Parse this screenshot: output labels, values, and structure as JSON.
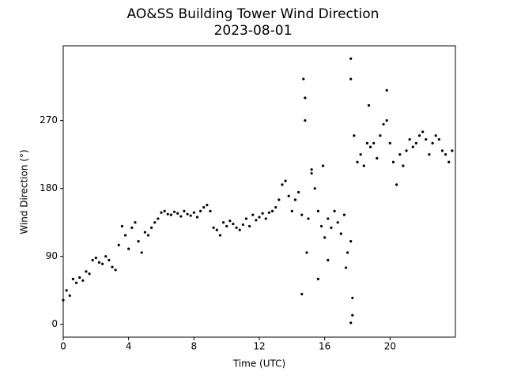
{
  "chart_data": {
    "type": "scatter",
    "title": "AO&SS Building Tower Wind Direction",
    "subtitle": "2023-08-01",
    "x_label": "Time (UTC)",
    "y_label": "Wind Direction (°)",
    "color": "#000000",
    "xlim": [
      0,
      24
    ],
    "xticks": [
      0,
      4,
      8,
      12,
      16,
      20
    ],
    "ylim": [
      -17,
      369
    ],
    "yticks": [
      0,
      90,
      180,
      270
    ],
    "x": [
      0.0,
      0.2,
      0.4,
      0.6,
      0.8,
      1.0,
      1.2,
      1.4,
      1.6,
      1.8,
      2.0,
      2.2,
      2.4,
      2.6,
      2.8,
      3.0,
      3.2,
      3.4,
      3.6,
      3.8,
      4.0,
      4.2,
      4.4,
      4.6,
      4.8,
      5.0,
      5.2,
      5.4,
      5.6,
      5.8,
      6.0,
      6.2,
      6.4,
      6.6,
      6.8,
      7.0,
      7.2,
      7.4,
      7.6,
      7.8,
      8.0,
      8.2,
      8.4,
      8.6,
      8.8,
      9.0,
      9.2,
      9.4,
      9.6,
      9.8,
      10.0,
      10.2,
      10.4,
      10.6,
      10.8,
      11.0,
      11.2,
      11.4,
      11.6,
      11.8,
      12.0,
      12.2,
      12.4,
      12.6,
      12.8,
      13.0,
      13.2,
      13.4,
      13.6,
      13.8,
      14.0,
      14.2,
      14.4,
      14.6,
      14.8,
      15.0,
      15.2,
      15.4,
      15.6,
      15.8,
      16.0,
      16.2,
      16.4,
      16.6,
      16.8,
      17.0,
      17.2,
      17.4,
      17.6,
      17.8,
      18.0,
      18.2,
      18.4,
      18.6,
      18.8,
      19.0,
      19.2,
      19.4,
      19.6,
      19.8,
      20.0,
      20.2,
      20.4,
      20.6,
      20.8,
      21.0,
      21.2,
      21.4,
      21.6,
      21.8,
      22.0,
      22.2,
      22.4,
      22.6,
      22.8,
      23.0,
      23.2,
      23.4,
      23.6,
      23.8,
      14.6,
      14.7,
      14.8,
      14.9,
      15.6,
      15.9,
      16.2,
      17.6,
      17.7,
      17.6,
      17.6,
      17.3,
      19.8,
      18.7,
      15.2,
      17.7
    ],
    "values": [
      32,
      45,
      38,
      60,
      55,
      62,
      58,
      70,
      67,
      85,
      88,
      82,
      80,
      90,
      85,
      76,
      72,
      105,
      130,
      118,
      100,
      128,
      135,
      110,
      95,
      122,
      118,
      128,
      135,
      140,
      148,
      150,
      146,
      145,
      149,
      147,
      143,
      150,
      146,
      144,
      148,
      142,
      150,
      155,
      158,
      150,
      128,
      125,
      118,
      135,
      130,
      137,
      133,
      128,
      125,
      132,
      140,
      130,
      145,
      138,
      142,
      147,
      140,
      148,
      150,
      155,
      165,
      185,
      190,
      170,
      150,
      165,
      175,
      145,
      270,
      140,
      205,
      180,
      150,
      130,
      115,
      140,
      128,
      150,
      135,
      120,
      145,
      95,
      110,
      250,
      215,
      225,
      210,
      240,
      235,
      240,
      220,
      250,
      265,
      270,
      240,
      215,
      185,
      225,
      210,
      230,
      245,
      235,
      240,
      250,
      255,
      245,
      225,
      240,
      250,
      245,
      230,
      225,
      215,
      230,
      40,
      325,
      300,
      95,
      60,
      210,
      85,
      2,
      35,
      352,
      325,
      75,
      310,
      290,
      200,
      12
    ]
  }
}
